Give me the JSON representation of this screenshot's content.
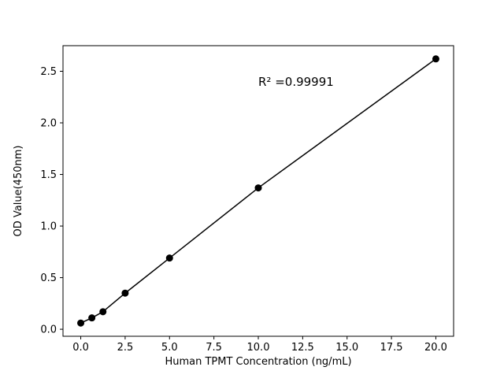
{
  "figure": {
    "background": "#ffffff",
    "foreground": "#000000"
  },
  "chart_data": {
    "type": "scatter",
    "title": "",
    "xlabel": "Human TPMT Concentration (ng/mL)",
    "ylabel": "OD Value(450nm)",
    "x": [
      0,
      0.625,
      1.25,
      2.5,
      5,
      10,
      20
    ],
    "y": [
      0.06,
      0.11,
      0.17,
      0.35,
      0.69,
      1.37,
      2.62
    ],
    "marker": "circle-filled",
    "marker_color": "#000000",
    "line": true,
    "line_color": "#000000",
    "xlim": [
      -1,
      21
    ],
    "ylim": [
      -0.068,
      2.748
    ],
    "xticks": [
      0.0,
      2.5,
      5.0,
      7.5,
      10.0,
      12.5,
      15.0,
      17.5,
      20.0
    ],
    "xtick_labels": [
      "0.0",
      "2.5",
      "5.0",
      "7.5",
      "10.0",
      "12.5",
      "15.0",
      "17.5",
      "20.0"
    ],
    "yticks": [
      0.0,
      0.5,
      1.0,
      1.5,
      2.0,
      2.5
    ],
    "ytick_labels": [
      "0.0",
      "0.5",
      "1.0",
      "1.5",
      "2.0",
      "2.5"
    ],
    "annotation": {
      "text": "R² =0.99991",
      "x": 10.0,
      "y": 2.36
    },
    "grid": false,
    "legend": null,
    "axes_box": true
  }
}
